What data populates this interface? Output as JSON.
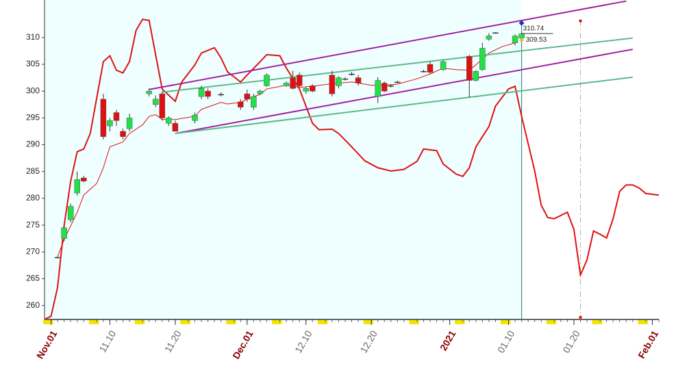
{
  "chart_data": {
    "type": "candlestick",
    "xlim": [
      "10.31",
      "02.02"
    ],
    "ylim": [
      257.4,
      317
    ],
    "yticks": [
      260,
      265,
      270,
      275,
      280,
      285,
      290,
      295,
      300,
      305,
      310
    ],
    "xticks": [
      {
        "value": "11.01",
        "label": "Nov.01"
      },
      "11.10",
      "11.20",
      {
        "value": "12.01",
        "label": "Dec.01"
      },
      "12.10",
      "12.20",
      {
        "value": "01.01",
        "label": "2021"
      },
      "01.10",
      "01.20",
      {
        "value": "02.01",
        "label": "Feb.01"
      }
    ],
    "candles": {
      "up_color": "#22e04a",
      "down_color": "#dd1111",
      "x": [
        "11.02",
        "11.03",
        "11.04",
        "11.05",
        "11.06",
        "11.09",
        "11.10",
        "11.11",
        "11.12",
        "11.13",
        "11.16",
        "11.17",
        "11.18",
        "11.19",
        "11.20",
        "11.23",
        "11.24",
        "11.25",
        "11.27",
        "11.30",
        "12.01",
        "12.02",
        "12.03",
        "12.04",
        "12.07",
        "12.08",
        "12.09",
        "12.10",
        "12.11",
        "12.14",
        "12.15",
        "12.16",
        "12.17",
        "12.18",
        "12.21",
        "12.22",
        "12.23",
        "12.24",
        "12.28",
        "12.29",
        "12.31",
        "01.04",
        "01.05",
        "01.06",
        "01.07",
        "01.08",
        "01.11",
        "01.12"
      ],
      "open": [
        269,
        272.5,
        276,
        281,
        283.8,
        298.5,
        293.5,
        296,
        292.5,
        293,
        299.5,
        297.5,
        299.5,
        294,
        294,
        294.5,
        299,
        300,
        299.4,
        298,
        299.5,
        297,
        299.5,
        301,
        301,
        302.5,
        303,
        300,
        301,
        303,
        301,
        302.3,
        303.2,
        302.5,
        299,
        301.5,
        301,
        301.7,
        303.7,
        305,
        304,
        306.5,
        302,
        304,
        309.7,
        310.9,
        309,
        309.9
      ],
      "high": [
        269.2,
        275,
        279,
        285,
        284.2,
        299.5,
        295,
        296.5,
        293,
        295.8,
        300.5,
        299.2,
        300,
        295.3,
        294.5,
        296,
        301,
        300.5,
        299.8,
        298.5,
        300.3,
        299.5,
        300.3,
        303.3,
        301.8,
        303.8,
        303.5,
        300.8,
        301.3,
        303.8,
        302.8,
        302.6,
        303.6,
        303,
        302.6,
        301.8,
        301.3,
        302,
        304,
        305.5,
        305.8,
        306.8,
        303.9,
        309,
        310.8,
        311,
        310.6,
        310.9
      ],
      "low": [
        268.8,
        272,
        275.5,
        280.5,
        283,
        291,
        292.5,
        293.5,
        291,
        292.5,
        299,
        297,
        294.5,
        293.5,
        292.5,
        294,
        298.5,
        298.5,
        299,
        296.5,
        298,
        296.5,
        299.3,
        300.8,
        300.8,
        300.3,
        300.8,
        299.5,
        299.8,
        299,
        300.5,
        302,
        302.9,
        301,
        297.8,
        299.8,
        300.7,
        301.5,
        303.5,
        303.2,
        303.8,
        298.8,
        301.8,
        303.8,
        309.4,
        310.8,
        308.5,
        309.7
      ],
      "close": [
        269,
        274.5,
        278.5,
        283.5,
        283.2,
        291.5,
        294.5,
        294.5,
        291.5,
        295,
        300,
        298.5,
        295,
        295,
        292.5,
        295.5,
        300.5,
        299,
        299.4,
        297,
        298.5,
        299,
        300,
        303,
        301.5,
        300.5,
        301,
        300.5,
        300,
        299.5,
        302.5,
        302.3,
        303.2,
        301.5,
        302,
        300,
        301,
        301.7,
        303.7,
        303.5,
        305.5,
        302,
        303.7,
        308,
        310.3,
        310.9,
        310.3,
        310.7
      ]
    },
    "lines": [
      {
        "color": "#e01010",
        "width": 1,
        "x": [
          "11.02",
          "11.03",
          "11.05",
          "11.06",
          "11.08",
          "11.09",
          "11.10",
          "11.12",
          "11.13",
          "11.15",
          "11.16",
          "11.17",
          "11.18",
          "11.20",
          "11.21",
          "11.23",
          "11.24",
          "11.27",
          "11.28",
          "11.30",
          "12.01",
          "12.03",
          "12.04",
          "12.07",
          "12.09",
          "12.11",
          "12.14",
          "12.17",
          "12.20",
          "12.22",
          "12.24",
          "12.27",
          "12.29",
          "12.31",
          "01.02",
          "01.04",
          "01.05",
          "01.07",
          "01.09",
          "01.11"
        ],
        "values": [
          269.1,
          272.3,
          277.4,
          280.6,
          282.8,
          285.7,
          289.6,
          290.5,
          292.1,
          293.7,
          295.3,
          295.6,
          294.7,
          294.7,
          294.9,
          295.3,
          296.6,
          297.9,
          297.6,
          297.9,
          298.5,
          299.4,
          300.4,
          301.1,
          300.7,
          300.9,
          301.4,
          301.7,
          301.1,
          301.1,
          301.3,
          302.3,
          303.2,
          304.3,
          304.0,
          303.9,
          304.9,
          307.1,
          308.3,
          309.0
        ]
      },
      {
        "color": "#e01010",
        "width": 2,
        "x": [
          "10.31",
          "11.01",
          "11.02",
          "11.03",
          "11.04",
          "11.05",
          "11.06",
          "11.07",
          "11.09",
          "11.10",
          "11.11",
          "11.12",
          "11.13",
          "11.14",
          "11.15",
          "11.16",
          "11.17",
          "11.18",
          "11.20",
          "11.21",
          "11.23",
          "11.24",
          "11.26",
          "11.27",
          "11.28",
          "11.30",
          "12.01",
          "12.03",
          "12.04",
          "12.06",
          "12.07",
          "12.09",
          "12.11",
          "12.12",
          "12.14",
          "12.15",
          "12.17",
          "12.19",
          "12.21",
          "12.23",
          "12.25",
          "12.27",
          "12.28",
          "12.30",
          "12.31",
          "01.02",
          "01.03",
          "01.04",
          "01.05",
          "01.07",
          "01.08",
          "01.10",
          "01.11",
          "01.12",
          "01.14",
          "01.15",
          "01.16",
          "01.17",
          "01.19",
          "01.20",
          "01.21",
          "01.22",
          "01.23",
          "01.24",
          "01.25",
          "01.26",
          "01.27",
          "01.28",
          "01.29",
          "01.30",
          "01.31",
          "02.02"
        ],
        "values": [
          257.4,
          258.0,
          263.4,
          274.9,
          283.2,
          288.7,
          289.2,
          292.1,
          305.5,
          306.6,
          303.9,
          303.4,
          305.5,
          311.3,
          313.4,
          313.2,
          306.8,
          300.4,
          298.1,
          301.7,
          304.9,
          307.1,
          308.1,
          306.2,
          303.6,
          301.7,
          303.0,
          305.5,
          306.8,
          306.6,
          304.3,
          300.4,
          294.0,
          292.8,
          292.9,
          292.1,
          289.6,
          287.0,
          285.7,
          285.1,
          285.4,
          286.9,
          289.2,
          288.9,
          286.4,
          284.5,
          284.1,
          285.7,
          289.6,
          293.4,
          297.2,
          300.4,
          300.9,
          295.3,
          285.1,
          278.7,
          276.4,
          276.2,
          277.4,
          274.2,
          265.7,
          268.5,
          273.9,
          273.3,
          272.6,
          276.2,
          281.3,
          282.5,
          282.5,
          281.9,
          280.9,
          280.6
        ]
      },
      {
        "color": "#a020a0",
        "width": 2,
        "x": [
          "11.16",
          "01.28"
        ],
        "values": [
          300.3,
          316.8
        ]
      },
      {
        "color": "#a020a0",
        "width": 2,
        "x": [
          "11.20",
          "01.29"
        ],
        "values": [
          292.1,
          307.8
        ]
      },
      {
        "color": "#5cb88a",
        "width": 2,
        "x": [
          "11.18",
          "01.29"
        ],
        "values": [
          299.8,
          309.9
        ]
      },
      {
        "color": "#5cb88a",
        "width": 2,
        "x": [
          "11.20",
          "01.29"
        ],
        "values": [
          292.1,
          302.6
        ]
      }
    ],
    "vlines": [
      {
        "x": "01.12",
        "color": "#1a7a7a",
        "dashed": false
      },
      {
        "x": "01.21",
        "color": "#aaaaaa",
        "dashed": true
      }
    ],
    "markers": [
      {
        "x": "01.12",
        "value": 312.7,
        "color": "#2030c0",
        "shape": "diamond"
      },
      {
        "x": "01.21",
        "value": 313.1,
        "color": "#e01010",
        "shape": "dot"
      },
      {
        "x": "01.21",
        "value": 257.8,
        "color": "#e01010",
        "shape": "dot"
      }
    ],
    "annotations": [
      {
        "x": "01.12",
        "value": 310.74
      },
      {
        "x": "01.12",
        "value": 309.53
      }
    ],
    "weekend_color": "#f2e600",
    "shade_color": "#effefe"
  }
}
